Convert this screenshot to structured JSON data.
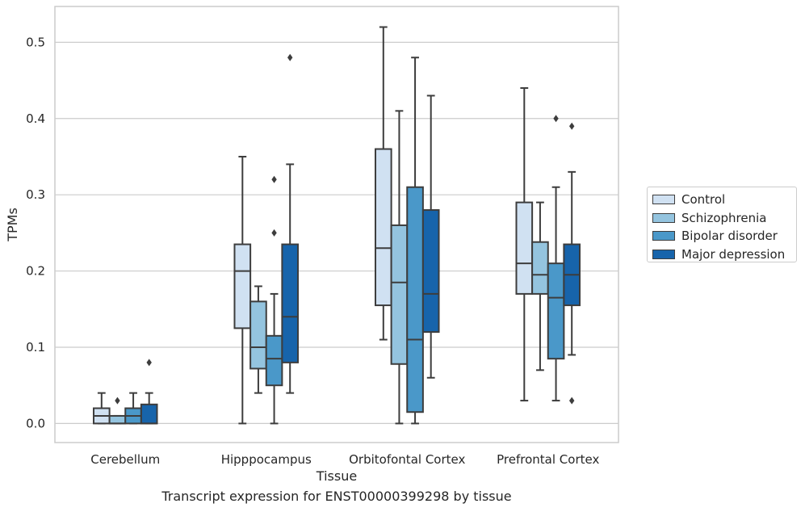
{
  "caption": "Transcript expression for ENST00000399298 by tissue",
  "chart_data": {
    "type": "box",
    "xlabel": "Tissue",
    "ylabel": "TPMs",
    "ylim": [
      -0.025,
      0.547
    ],
    "yticks": [
      "0.0",
      "0.1",
      "0.2",
      "0.3",
      "0.4",
      "0.5"
    ],
    "ytick_values": [
      0.0,
      0.1,
      0.2,
      0.3,
      0.4,
      0.5
    ],
    "grid": "horizontal",
    "legend_position": "right",
    "categories": [
      "Cerebellum",
      "Hipppocampus",
      "Orbitofontal Cortex",
      "Prefrontal Cortex"
    ],
    "series": [
      {
        "name": "Control",
        "color": "#d0e1f2",
        "boxes": [
          {
            "whislo": 0.0,
            "q1": 0.0,
            "med": 0.01,
            "q3": 0.02,
            "whishi": 0.04,
            "fliers": []
          },
          {
            "whislo": 0.0,
            "q1": 0.125,
            "med": 0.2,
            "q3": 0.235,
            "whishi": 0.35,
            "fliers": []
          },
          {
            "whislo": 0.11,
            "q1": 0.155,
            "med": 0.23,
            "q3": 0.36,
            "whishi": 0.52,
            "fliers": []
          },
          {
            "whislo": 0.03,
            "q1": 0.17,
            "med": 0.21,
            "q3": 0.29,
            "whishi": 0.44,
            "fliers": []
          }
        ]
      },
      {
        "name": "Schizophrenia",
        "color": "#94c4df",
        "boxes": [
          {
            "whislo": 0.0,
            "q1": 0.0,
            "med": 0.0,
            "q3": 0.01,
            "whishi": 0.01,
            "fliers": [
              0.03
            ]
          },
          {
            "whislo": 0.04,
            "q1": 0.072,
            "med": 0.1,
            "q3": 0.16,
            "whishi": 0.18,
            "fliers": []
          },
          {
            "whislo": 0.0,
            "q1": 0.078,
            "med": 0.185,
            "q3": 0.26,
            "whishi": 0.41,
            "fliers": []
          },
          {
            "whislo": 0.07,
            "q1": 0.17,
            "med": 0.195,
            "q3": 0.238,
            "whishi": 0.29,
            "fliers": []
          }
        ]
      },
      {
        "name": "Bipolar disorder",
        "color": "#4a98c9",
        "boxes": [
          {
            "whislo": 0.0,
            "q1": 0.0,
            "med": 0.01,
            "q3": 0.02,
            "whishi": 0.04,
            "fliers": []
          },
          {
            "whislo": 0.0,
            "q1": 0.05,
            "med": 0.085,
            "q3": 0.115,
            "whishi": 0.17,
            "fliers": [
              0.25,
              0.32
            ]
          },
          {
            "whislo": 0.0,
            "q1": 0.015,
            "med": 0.11,
            "q3": 0.31,
            "whishi": 0.48,
            "fliers": []
          },
          {
            "whislo": 0.03,
            "q1": 0.085,
            "med": 0.165,
            "q3": 0.21,
            "whishi": 0.31,
            "fliers": [
              0.4
            ]
          }
        ]
      },
      {
        "name": "Major depression",
        "color": "#1764ab",
        "boxes": [
          {
            "whislo": 0.0,
            "q1": 0.0,
            "med": 0.0,
            "q3": 0.025,
            "whishi": 0.04,
            "fliers": [
              0.08
            ]
          },
          {
            "whislo": 0.04,
            "q1": 0.08,
            "med": 0.14,
            "q3": 0.235,
            "whishi": 0.34,
            "fliers": [
              0.48
            ]
          },
          {
            "whislo": 0.06,
            "q1": 0.12,
            "med": 0.17,
            "q3": 0.28,
            "whishi": 0.43,
            "fliers": []
          },
          {
            "whislo": 0.09,
            "q1": 0.155,
            "med": 0.195,
            "q3": 0.235,
            "whishi": 0.33,
            "fliers": [
              0.03,
              0.39
            ]
          }
        ]
      }
    ]
  }
}
